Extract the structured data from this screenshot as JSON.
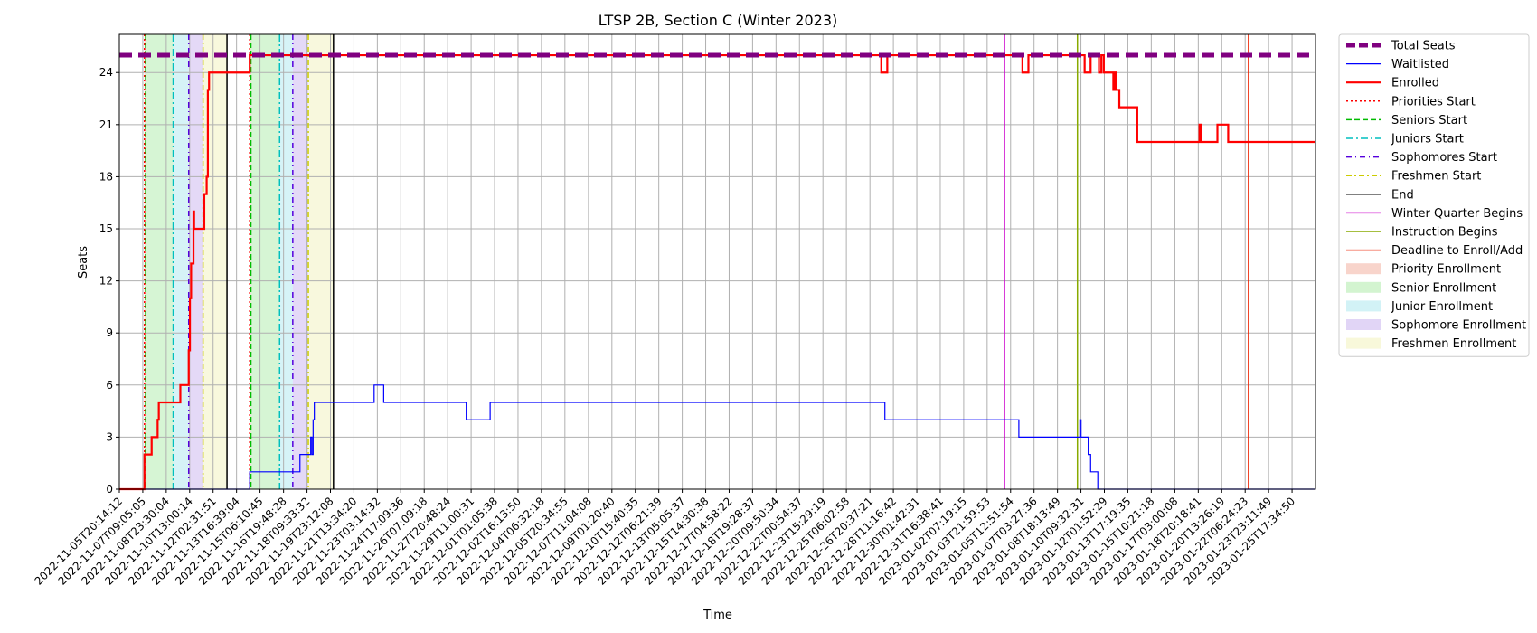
{
  "chart_data": {
    "type": "line",
    "title": "LTSP 2B, Section C (Winter 2023)",
    "xlabel": "Time",
    "ylabel": "Seats",
    "xlim": [
      0,
      1.0
    ],
    "ylim": [
      0,
      26.2
    ],
    "yticks": [
      0,
      3,
      6,
      9,
      12,
      15,
      18,
      21,
      24
    ],
    "grid": true,
    "legend_position": "outside-right-top",
    "xticks": [
      {
        "x": 0.0,
        "label": "2022-11-05T20:14:12"
      },
      {
        "x": 0.0196,
        "label": "2022-11-07T09:05:05"
      },
      {
        "x": 0.0392,
        "label": "2022-11-08T23:30:04"
      },
      {
        "x": 0.0588,
        "label": "2022-11-10T13:00:14"
      },
      {
        "x": 0.0784,
        "label": "2022-11-12T02:31:51"
      },
      {
        "x": 0.098,
        "label": "2022-11-13T16:39:04"
      },
      {
        "x": 0.1176,
        "label": "2022-11-15T06:10:45"
      },
      {
        "x": 0.1373,
        "label": "2022-11-16T19:48:28"
      },
      {
        "x": 0.1569,
        "label": "2022-11-18T09:33:32"
      },
      {
        "x": 0.1765,
        "label": "2022-11-19T23:12:08"
      },
      {
        "x": 0.1961,
        "label": "2022-11-21T13:34:20"
      },
      {
        "x": 0.2157,
        "label": "2022-11-23T03:14:32"
      },
      {
        "x": 0.2353,
        "label": "2022-11-24T17:09:36"
      },
      {
        "x": 0.2549,
        "label": "2022-11-26T07:09:18"
      },
      {
        "x": 0.2745,
        "label": "2022-11-27T20:48:24"
      },
      {
        "x": 0.2941,
        "label": "2022-11-29T11:00:31"
      },
      {
        "x": 0.3137,
        "label": "2022-12-01T01:05:38"
      },
      {
        "x": 0.3333,
        "label": "2022-12-02T16:13:50"
      },
      {
        "x": 0.3529,
        "label": "2022-12-04T06:32:18"
      },
      {
        "x": 0.3725,
        "label": "2022-12-05T20:34:55"
      },
      {
        "x": 0.3922,
        "label": "2022-12-07T11:04:08"
      },
      {
        "x": 0.4118,
        "label": "2022-12-09T01:20:40"
      },
      {
        "x": 0.4314,
        "label": "2022-12-10T15:40:35"
      },
      {
        "x": 0.451,
        "label": "2022-12-12T06:21:39"
      },
      {
        "x": 0.4706,
        "label": "2022-12-13T05:05:37"
      },
      {
        "x": 0.4902,
        "label": "2022-12-15T14:30:38"
      },
      {
        "x": 0.5098,
        "label": "2022-12-17T04:58:22"
      },
      {
        "x": 0.5294,
        "label": "2022-12-18T19:28:37"
      },
      {
        "x": 0.549,
        "label": "2022-12-20T09:50:34"
      },
      {
        "x": 0.5686,
        "label": "2022-12-22T00:54:37"
      },
      {
        "x": 0.5882,
        "label": "2022-12-23T15:29:19"
      },
      {
        "x": 0.6078,
        "label": "2022-12-25T06:02:58"
      },
      {
        "x": 0.6275,
        "label": "2022-12-26T20:37:21"
      },
      {
        "x": 0.6471,
        "label": "2022-12-28T11:16:42"
      },
      {
        "x": 0.6667,
        "label": "2022-12-30T01:42:31"
      },
      {
        "x": 0.6863,
        "label": "2022-12-31T16:38:41"
      },
      {
        "x": 0.7059,
        "label": "2023-01-02T07:19:15"
      },
      {
        "x": 0.7255,
        "label": "2023-01-03T21:59:53"
      },
      {
        "x": 0.7451,
        "label": "2023-01-05T12:51:54"
      },
      {
        "x": 0.7647,
        "label": "2023-01-07T03:27:36"
      },
      {
        "x": 0.7843,
        "label": "2023-01-08T18:13:49"
      },
      {
        "x": 0.8039,
        "label": "2023-01-10T09:32:31"
      },
      {
        "x": 0.8235,
        "label": "2023-01-12T01:52:29"
      },
      {
        "x": 0.8431,
        "label": "2023-01-13T17:19:35"
      },
      {
        "x": 0.8627,
        "label": "2023-01-15T10:21:18"
      },
      {
        "x": 0.8824,
        "label": "2023-01-17T03:00:08"
      },
      {
        "x": 0.902,
        "label": "2023-01-18T20:18:41"
      },
      {
        "x": 0.9216,
        "label": "2023-01-20T13:26:19"
      },
      {
        "x": 0.9412,
        "label": "2023-01-22T06:24:23"
      },
      {
        "x": 0.9608,
        "label": "2023-01-23T23:11:49"
      },
      {
        "x": 0.9804,
        "label": "2023-01-25T17:34:50"
      }
    ],
    "series": [
      {
        "name": "Total Seats",
        "color": "#800080",
        "style": "dashed-thick",
        "points": [
          [
            0.0,
            25
          ],
          [
            1.0,
            25
          ]
        ]
      },
      {
        "name": "Waitlisted",
        "color": "#0000ff",
        "style": "solid-thin",
        "step": true,
        "points": [
          [
            0.0,
            0
          ],
          [
            0.109,
            0
          ],
          [
            0.109,
            1
          ],
          [
            0.151,
            1
          ],
          [
            0.151,
            2
          ],
          [
            0.16,
            2
          ],
          [
            0.16,
            3
          ],
          [
            0.161,
            3
          ],
          [
            0.161,
            2
          ],
          [
            0.162,
            2
          ],
          [
            0.162,
            4
          ],
          [
            0.163,
            4
          ],
          [
            0.163,
            5
          ],
          [
            0.213,
            5
          ],
          [
            0.213,
            6
          ],
          [
            0.221,
            6
          ],
          [
            0.221,
            5
          ],
          [
            0.29,
            5
          ],
          [
            0.29,
            4
          ],
          [
            0.31,
            4
          ],
          [
            0.31,
            5
          ],
          [
            0.64,
            5
          ],
          [
            0.64,
            4
          ],
          [
            0.752,
            4
          ],
          [
            0.752,
            3
          ],
          [
            0.803,
            3
          ],
          [
            0.803,
            4
          ],
          [
            0.804,
            4
          ],
          [
            0.804,
            3
          ],
          [
            0.81,
            3
          ],
          [
            0.81,
            2
          ],
          [
            0.812,
            2
          ],
          [
            0.812,
            1
          ],
          [
            0.818,
            1
          ],
          [
            0.818,
            0
          ],
          [
            1.0,
            0
          ]
        ]
      },
      {
        "name": "Enrolled",
        "color": "#ff0000",
        "style": "solid-thick",
        "step": true,
        "points": [
          [
            0.0,
            0
          ],
          [
            0.021,
            0
          ],
          [
            0.021,
            2
          ],
          [
            0.027,
            2
          ],
          [
            0.027,
            3
          ],
          [
            0.032,
            3
          ],
          [
            0.032,
            4
          ],
          [
            0.033,
            4
          ],
          [
            0.033,
            5
          ],
          [
            0.051,
            5
          ],
          [
            0.051,
            6
          ],
          [
            0.058,
            6
          ],
          [
            0.058,
            8
          ],
          [
            0.059,
            8
          ],
          [
            0.059,
            11
          ],
          [
            0.06,
            11
          ],
          [
            0.06,
            13
          ],
          [
            0.062,
            13
          ],
          [
            0.062,
            16
          ],
          [
            0.0625,
            16
          ],
          [
            0.0625,
            15
          ],
          [
            0.071,
            15
          ],
          [
            0.071,
            17
          ],
          [
            0.073,
            17
          ],
          [
            0.073,
            18
          ],
          [
            0.074,
            18
          ],
          [
            0.074,
            23
          ],
          [
            0.075,
            23
          ],
          [
            0.075,
            24
          ],
          [
            0.109,
            24
          ],
          [
            0.109,
            25
          ],
          [
            0.637,
            25
          ],
          [
            0.637,
            24
          ],
          [
            0.642,
            24
          ],
          [
            0.642,
            25
          ],
          [
            0.755,
            25
          ],
          [
            0.755,
            24
          ],
          [
            0.76,
            24
          ],
          [
            0.76,
            25
          ],
          [
            0.807,
            25
          ],
          [
            0.807,
            24
          ],
          [
            0.812,
            24
          ],
          [
            0.812,
            25
          ],
          [
            0.819,
            25
          ],
          [
            0.819,
            24
          ],
          [
            0.821,
            24
          ],
          [
            0.821,
            25
          ],
          [
            0.823,
            25
          ],
          [
            0.823,
            24
          ],
          [
            0.831,
            24
          ],
          [
            0.831,
            23
          ],
          [
            0.832,
            23
          ],
          [
            0.832,
            24
          ],
          [
            0.833,
            24
          ],
          [
            0.833,
            23
          ],
          [
            0.836,
            23
          ],
          [
            0.836,
            22
          ],
          [
            0.851,
            22
          ],
          [
            0.851,
            20
          ],
          [
            0.903,
            20
          ],
          [
            0.903,
            21
          ],
          [
            0.904,
            21
          ],
          [
            0.904,
            20
          ],
          [
            0.918,
            20
          ],
          [
            0.918,
            21
          ],
          [
            0.927,
            21
          ],
          [
            0.927,
            20
          ],
          [
            1.0,
            20
          ]
        ]
      }
    ],
    "events": [
      {
        "name": "Priorities Start",
        "color": "#ff0000",
        "dash": "2,3",
        "x": [
          0.021,
          0.109
        ]
      },
      {
        "name": "Seniors Start",
        "color": "#00bb00",
        "dash": "6,3",
        "x": [
          0.022,
          0.11
        ]
      },
      {
        "name": "Juniors Start",
        "color": "#00bfbf",
        "dash": "8,3,2,3",
        "x": [
          0.045,
          0.134
        ]
      },
      {
        "name": "Sophomores Start",
        "color": "#5500dd",
        "dash": "6,4,1,4",
        "x": [
          0.058,
          0.145
        ]
      },
      {
        "name": "Freshmen Start",
        "color": "#cccc00",
        "dash": "6,3,2,3",
        "x": [
          0.07,
          0.158
        ]
      },
      {
        "name": "End",
        "color": "#000000",
        "dash": "",
        "x": [
          0.09,
          0.179
        ]
      },
      {
        "name": "Winter Quarter Begins",
        "color": "#cc00cc",
        "dash": "",
        "x": [
          0.74
        ]
      },
      {
        "name": "Instruction Begins",
        "color": "#88aa00",
        "dash": "",
        "x": [
          0.801
        ]
      },
      {
        "name": "Deadline to Enroll/Add",
        "color": "#ee2200",
        "dash": "",
        "x": [
          0.944
        ]
      }
    ],
    "regions": [
      {
        "name": "Priority Enrollment",
        "color": "#f4b8a8",
        "spans": [
          [
            0.021,
            0.022
          ],
          [
            0.109,
            0.11
          ]
        ]
      },
      {
        "name": "Senior Enrollment",
        "color": "#b5ecb0",
        "spans": [
          [
            0.022,
            0.045
          ],
          [
            0.11,
            0.134
          ]
        ]
      },
      {
        "name": "Junior Enrollment",
        "color": "#b4eaf0",
        "spans": [
          [
            0.045,
            0.058
          ],
          [
            0.134,
            0.145
          ]
        ]
      },
      {
        "name": "Sophomore Enrollment",
        "color": "#cdb9f0",
        "spans": [
          [
            0.058,
            0.07
          ],
          [
            0.145,
            0.158
          ]
        ]
      },
      {
        "name": "Freshmen Enrollment",
        "color": "#f3f3c1",
        "spans": [
          [
            0.07,
            0.09
          ],
          [
            0.158,
            0.179
          ]
        ]
      }
    ]
  }
}
